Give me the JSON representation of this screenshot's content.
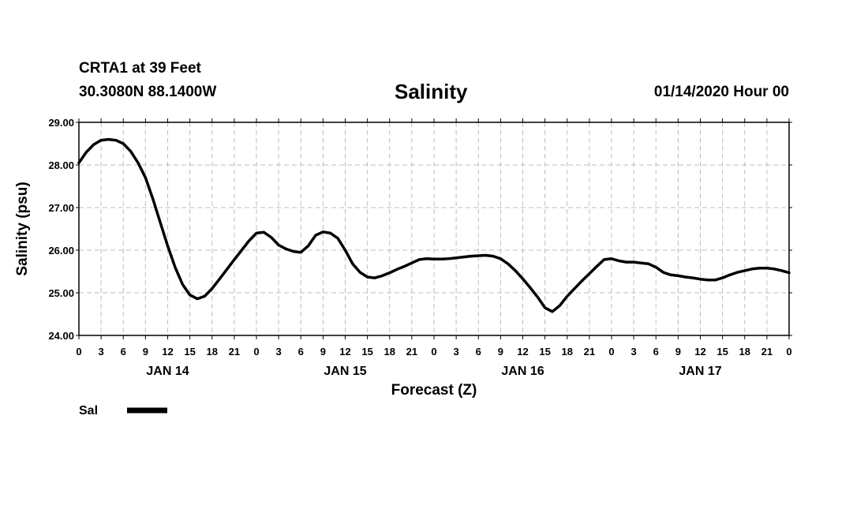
{
  "header": {
    "station": "CRTA1 at 39 Feet",
    "coords": "30.3080N 88.1400W",
    "title": "Salinity",
    "date_hour": "01/14/2020 Hour 00"
  },
  "legend": {
    "label": "Sal",
    "color": "#000000"
  },
  "chart_data": {
    "type": "line",
    "title": "Salinity",
    "xlabel": "Forecast (Z)",
    "ylabel": "Salinity (psu)",
    "xlim": [
      0,
      96
    ],
    "ylim": [
      24.0,
      29.0
    ],
    "grid": true,
    "yticks": [
      "24.00",
      "25.00",
      "26.00",
      "27.00",
      "28.00",
      "29.00"
    ],
    "xtick_labels": [
      "0",
      "3",
      "6",
      "9",
      "12",
      "15",
      "18",
      "21",
      "0",
      "3",
      "6",
      "9",
      "12",
      "15",
      "18",
      "21",
      "0",
      "3",
      "6",
      "9",
      "12",
      "15",
      "18",
      "21",
      "0",
      "3",
      "6",
      "9",
      "12",
      "15",
      "18",
      "21",
      "0"
    ],
    "day_labels": [
      {
        "label": "JAN 14",
        "hour": 12
      },
      {
        "label": "JAN 15",
        "hour": 36
      },
      {
        "label": "JAN 16",
        "hour": 60
      },
      {
        "label": "JAN 17",
        "hour": 84
      }
    ],
    "series": [
      {
        "name": "Sal",
        "x": [
          0,
          1,
          2,
          3,
          4,
          5,
          6,
          7,
          8,
          9,
          10,
          11,
          12,
          13,
          14,
          15,
          16,
          17,
          18,
          19,
          20,
          21,
          22,
          23,
          24,
          25,
          26,
          27,
          28,
          29,
          30,
          31,
          32,
          33,
          34,
          35,
          36,
          37,
          38,
          39,
          40,
          41,
          42,
          43,
          44,
          45,
          46,
          47,
          48,
          49,
          50,
          51,
          52,
          53,
          54,
          55,
          56,
          57,
          58,
          59,
          60,
          61,
          62,
          63,
          64,
          65,
          66,
          67,
          68,
          69,
          70,
          71,
          72,
          73,
          74,
          75,
          76,
          77,
          78,
          79,
          80,
          81,
          82,
          83,
          84,
          85,
          86,
          87,
          88,
          89,
          90,
          91,
          92,
          93,
          94,
          95,
          96
        ],
        "values": [
          28.05,
          28.3,
          28.48,
          28.58,
          28.6,
          28.58,
          28.5,
          28.32,
          28.05,
          27.7,
          27.2,
          26.65,
          26.1,
          25.6,
          25.2,
          24.95,
          24.86,
          24.92,
          25.1,
          25.32,
          25.55,
          25.78,
          26.0,
          26.22,
          26.4,
          26.42,
          26.3,
          26.12,
          26.03,
          25.97,
          25.95,
          26.1,
          26.35,
          26.43,
          26.4,
          26.28,
          26.0,
          25.68,
          25.48,
          25.37,
          25.35,
          25.4,
          25.47,
          25.55,
          25.62,
          25.7,
          25.78,
          25.8,
          25.79,
          25.79,
          25.8,
          25.82,
          25.84,
          25.86,
          25.87,
          25.88,
          25.86,
          25.8,
          25.68,
          25.52,
          25.33,
          25.12,
          24.9,
          24.65,
          24.56,
          24.7,
          24.92,
          25.1,
          25.28,
          25.45,
          25.62,
          25.78,
          25.8,
          25.75,
          25.72,
          25.72,
          25.7,
          25.68,
          25.6,
          25.48,
          25.42,
          25.4,
          25.37,
          25.35,
          25.32,
          25.3,
          25.3,
          25.35,
          25.42,
          25.48,
          25.52,
          25.56,
          25.58,
          25.58,
          25.56,
          25.52,
          25.47
        ]
      }
    ]
  }
}
